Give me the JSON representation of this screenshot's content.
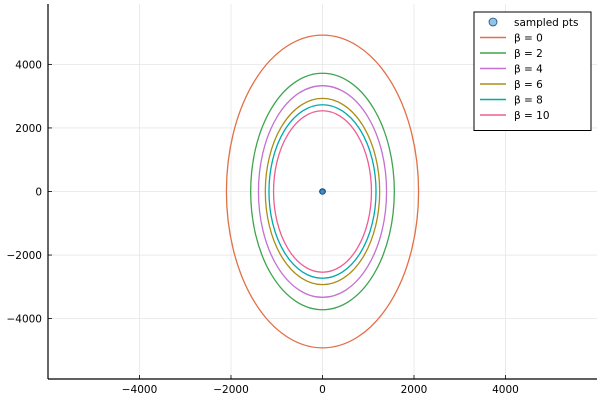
{
  "chart_data": {
    "type": "line",
    "title": "",
    "xlabel": "",
    "ylabel": "",
    "xlim": [
      -6000,
      6000
    ],
    "ylim": [
      -5900,
      5900
    ],
    "xticks": [
      -4000,
      -2000,
      0,
      2000,
      4000
    ],
    "xtick_labels": [
      "−4000",
      "−2000",
      "0",
      "2000",
      "4000"
    ],
    "yticks": [
      -4000,
      -2000,
      0,
      2000,
      4000
    ],
    "ytick_labels": [
      "−4000",
      "−2000",
      "0",
      "2000",
      "4000"
    ],
    "grid": true,
    "legend_position": "top-right",
    "scatter": {
      "name": "sampled pts",
      "color": "#3a8fd4",
      "points": [
        [
          0,
          0
        ],
        [
          8,
          4
        ],
        [
          -8,
          -4
        ],
        [
          5,
          -8
        ],
        [
          -5,
          8
        ],
        [
          10,
          0
        ],
        [
          -10,
          0
        ],
        [
          0,
          10
        ],
        [
          0,
          -10
        ]
      ]
    },
    "series": [
      {
        "name": "β = 0",
        "color": "#e26f46",
        "rx": 2100,
        "ry": 4920
      },
      {
        "name": "β = 2",
        "color": "#3da44d",
        "rx": 1570,
        "ry": 3720
      },
      {
        "name": "β = 4",
        "color": "#c371d2",
        "rx": 1400,
        "ry": 3330
      },
      {
        "name": "β = 6",
        "color": "#ac8d18",
        "rx": 1250,
        "ry": 2930
      },
      {
        "name": "β = 8",
        "color": "#00a9ad",
        "rx": 1170,
        "ry": 2730
      },
      {
        "name": "β = 10",
        "color": "#ed5e93",
        "rx": 1070,
        "ry": 2540
      }
    ]
  }
}
